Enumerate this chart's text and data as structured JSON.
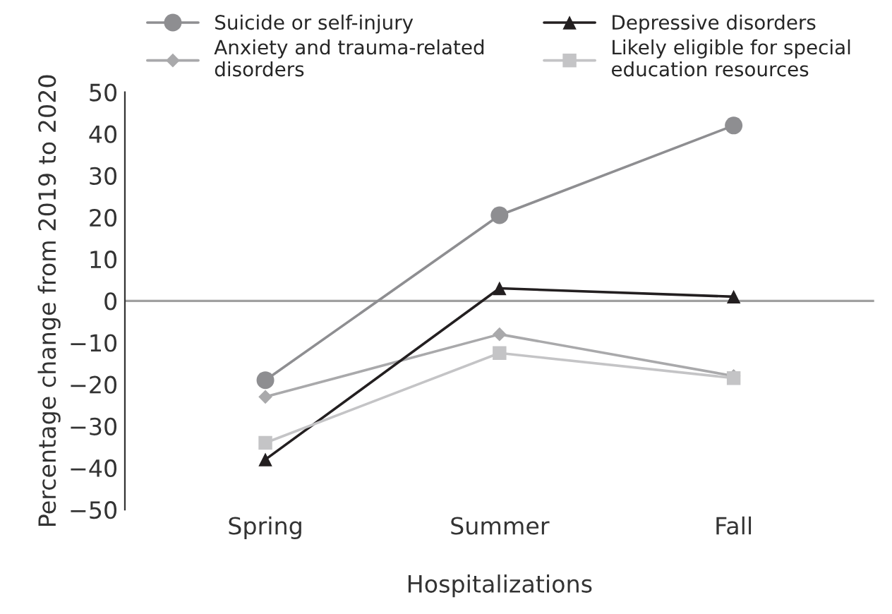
{
  "chart_data": {
    "type": "line",
    "xlabel": "Hospitalizations",
    "ylabel": "Percentage change from 2019 to 2020",
    "categories": [
      "Spring",
      "Summer",
      "Fall"
    ],
    "series": [
      {
        "name": "Suicide or self-injury",
        "color": "#8e8e91",
        "marker": "circle",
        "values": [
          -19,
          20.5,
          42
        ]
      },
      {
        "name": "Anxiety and trauma-related\ndisorders",
        "color": "#a9a9ab",
        "marker": "diamond",
        "values": [
          -23,
          -8,
          -18
        ]
      },
      {
        "name": "Depressive disorders",
        "color": "#231f20",
        "marker": "triangle",
        "values": [
          -38,
          3,
          1
        ]
      },
      {
        "name": "Likely eligible for special\neducation resources",
        "color": "#c4c4c6",
        "marker": "square",
        "values": [
          -34,
          -12.5,
          -18.5
        ]
      }
    ],
    "ylim": [
      -50,
      50
    ],
    "yticks": [
      {
        "value": -50,
        "label": "−50"
      },
      {
        "value": -40,
        "label": "−40"
      },
      {
        "value": -30,
        "label": "−30"
      },
      {
        "value": -20,
        "label": "−20"
      },
      {
        "value": -10,
        "label": "−10"
      },
      0,
      10,
      20,
      30,
      40,
      50
    ],
    "ref_lines": [
      {
        "axis": "y",
        "value": 0,
        "color": "#a0a0a0"
      }
    ],
    "grid": false,
    "legend": "top"
  }
}
